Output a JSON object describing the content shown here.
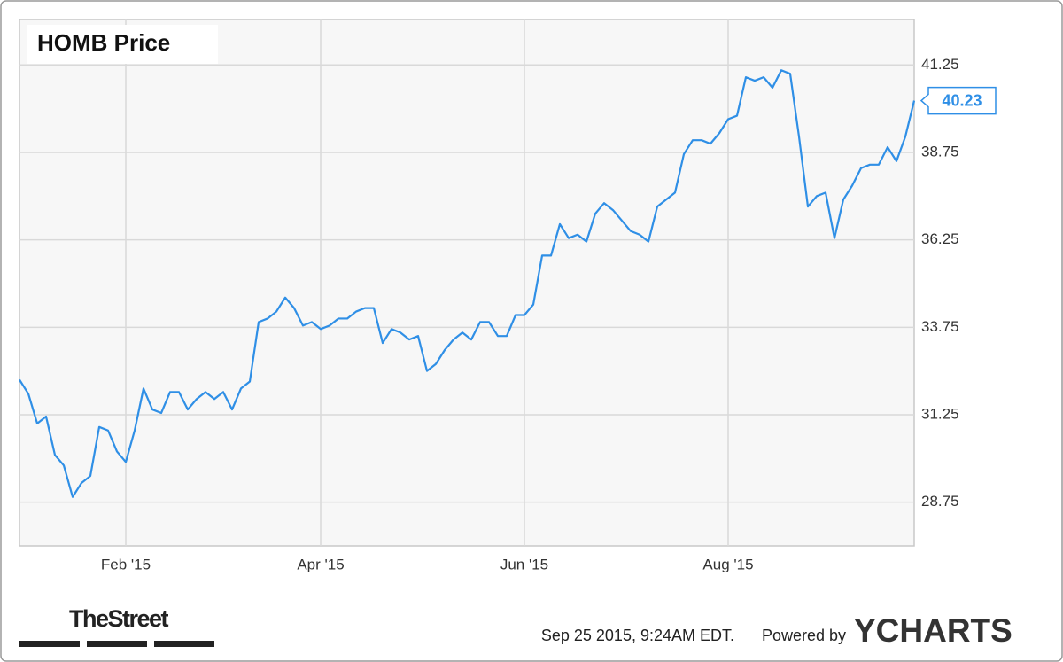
{
  "chart_data": {
    "type": "line",
    "title": "HOMB Price",
    "categories": [
      null,
      null,
      null,
      null,
      null,
      null,
      null,
      null,
      null,
      null,
      null,
      null,
      "Feb '15",
      null,
      null,
      null,
      null,
      null,
      null,
      null,
      null,
      null,
      null,
      null,
      null,
      null,
      null,
      null,
      null,
      null,
      null,
      null,
      null,
      null,
      "Apr '15",
      null,
      null,
      null,
      null,
      null,
      null,
      null,
      null,
      null,
      null,
      null,
      null,
      null,
      null,
      null,
      null,
      null,
      null,
      null,
      null,
      null,
      null,
      "Jun '15",
      null,
      null,
      null,
      null,
      null,
      null,
      null,
      null,
      null,
      null,
      null,
      null,
      null,
      null,
      null,
      null,
      null,
      null,
      null,
      null,
      null,
      null,
      "Aug '15",
      null,
      null,
      null,
      null,
      null,
      null,
      null,
      null,
      null,
      null,
      null,
      null,
      null,
      null,
      null,
      null,
      null,
      null,
      null,
      null,
      null
    ],
    "series": [
      {
        "name": "HOMB Price",
        "color": "#2f8fe6",
        "values": [
          32.25,
          31.85,
          31.0,
          31.2,
          30.1,
          29.8,
          28.9,
          29.3,
          29.5,
          30.9,
          30.8,
          30.2,
          29.9,
          30.8,
          32.0,
          31.4,
          31.3,
          31.9,
          31.9,
          31.4,
          31.7,
          31.9,
          31.7,
          31.9,
          31.4,
          32.0,
          32.2,
          33.9,
          34.0,
          34.2,
          34.6,
          34.3,
          33.8,
          33.9,
          33.7,
          33.8,
          34.0,
          34.0,
          34.2,
          34.3,
          34.3,
          33.3,
          33.7,
          33.6,
          33.4,
          33.5,
          32.5,
          32.7,
          33.1,
          33.4,
          33.6,
          33.4,
          33.9,
          33.9,
          33.5,
          33.5,
          34.1,
          34.1,
          34.4,
          35.8,
          35.8,
          36.7,
          36.3,
          36.4,
          36.2,
          37.0,
          37.3,
          37.1,
          36.8,
          36.5,
          36.4,
          36.2,
          37.2,
          37.4,
          37.6,
          38.7,
          39.1,
          39.1,
          39.0,
          39.3,
          39.7,
          39.8,
          40.9,
          40.8,
          40.9,
          40.6,
          41.1,
          41.0,
          39.2,
          37.2,
          37.5,
          37.6,
          36.3,
          37.4,
          37.8,
          38.3,
          38.4,
          38.4,
          38.9,
          38.5,
          39.2,
          40.23
        ]
      }
    ],
    "ylim": [
      27.5,
      42.55
    ],
    "yticks": [
      28.75,
      31.25,
      33.75,
      36.25,
      38.75,
      41.25
    ],
    "grid": true
  },
  "footer": {
    "source": "TheStreet",
    "timestamp": "Sep 25 2015, 9:24AM EDT.",
    "powered_by": "Powered by",
    "brand": "YCHARTS"
  }
}
